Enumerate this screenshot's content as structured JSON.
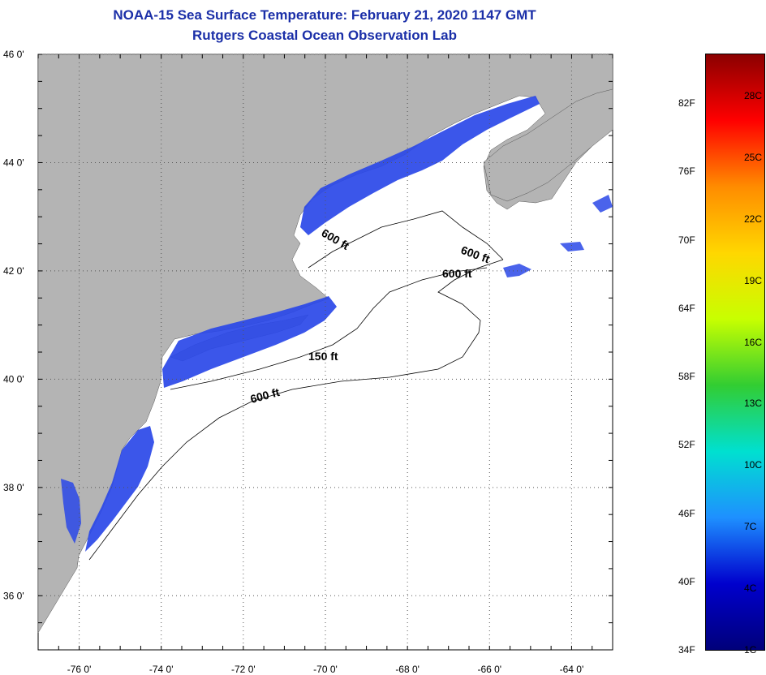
{
  "header": {
    "title_line1": "NOAA-15 Sea Surface Temperature:  February 21, 2020 1147 GMT",
    "title_line2": "Rutgers Coastal Ocean Observation Lab"
  },
  "map": {
    "lat_range": [
      35,
      46
    ],
    "lon_range": [
      -77,
      -63
    ],
    "lat_labels": [
      {
        "lat": 46,
        "text": "46 0'"
      },
      {
        "lat": 44,
        "text": "44 0'"
      },
      {
        "lat": 42,
        "text": "42 0'"
      },
      {
        "lat": 40,
        "text": "40 0'"
      },
      {
        "lat": 38,
        "text": "38 0'"
      },
      {
        "lat": 36,
        "text": "36 0'"
      }
    ],
    "lon_labels": [
      {
        "lon": -76,
        "text": "-76 0'"
      },
      {
        "lon": -74,
        "text": "-74 0'"
      },
      {
        "lon": -72,
        "text": "-72 0'"
      },
      {
        "lon": -70,
        "text": "-70 0'"
      },
      {
        "lon": -68,
        "text": "-68 0'"
      },
      {
        "lon": -66,
        "text": "-66 0'"
      },
      {
        "lon": -64,
        "text": "-64 0'"
      }
    ],
    "contour_labels": [
      {
        "text": "600 ft"
      },
      {
        "text": "600 ft"
      },
      {
        "text": "600 ft"
      },
      {
        "text": "150 ft"
      },
      {
        "text": "600 ft"
      }
    ],
    "colors": {
      "land": "#b4b4b4",
      "ocean": "#ffffff",
      "cold_water": "#2a48e8",
      "deep_blue": "#1a2ed8"
    }
  },
  "colorbar": {
    "fahrenheit_labels": [
      "82F",
      "76F",
      "70F",
      "64F",
      "58F",
      "52F",
      "46F",
      "40F",
      "34F"
    ],
    "celsius_labels": [
      "28C",
      "25C",
      "22C",
      "19C",
      "16C",
      "13C",
      "10C",
      "7C",
      "4C",
      "1C"
    ],
    "stops": [
      "#8b0000",
      "#ff0000",
      "#ff8c00",
      "#ffd700",
      "#c8ff00",
      "#32cd32",
      "#00e0d0",
      "#1e90ff",
      "#0000cd",
      "#00007a"
    ]
  }
}
